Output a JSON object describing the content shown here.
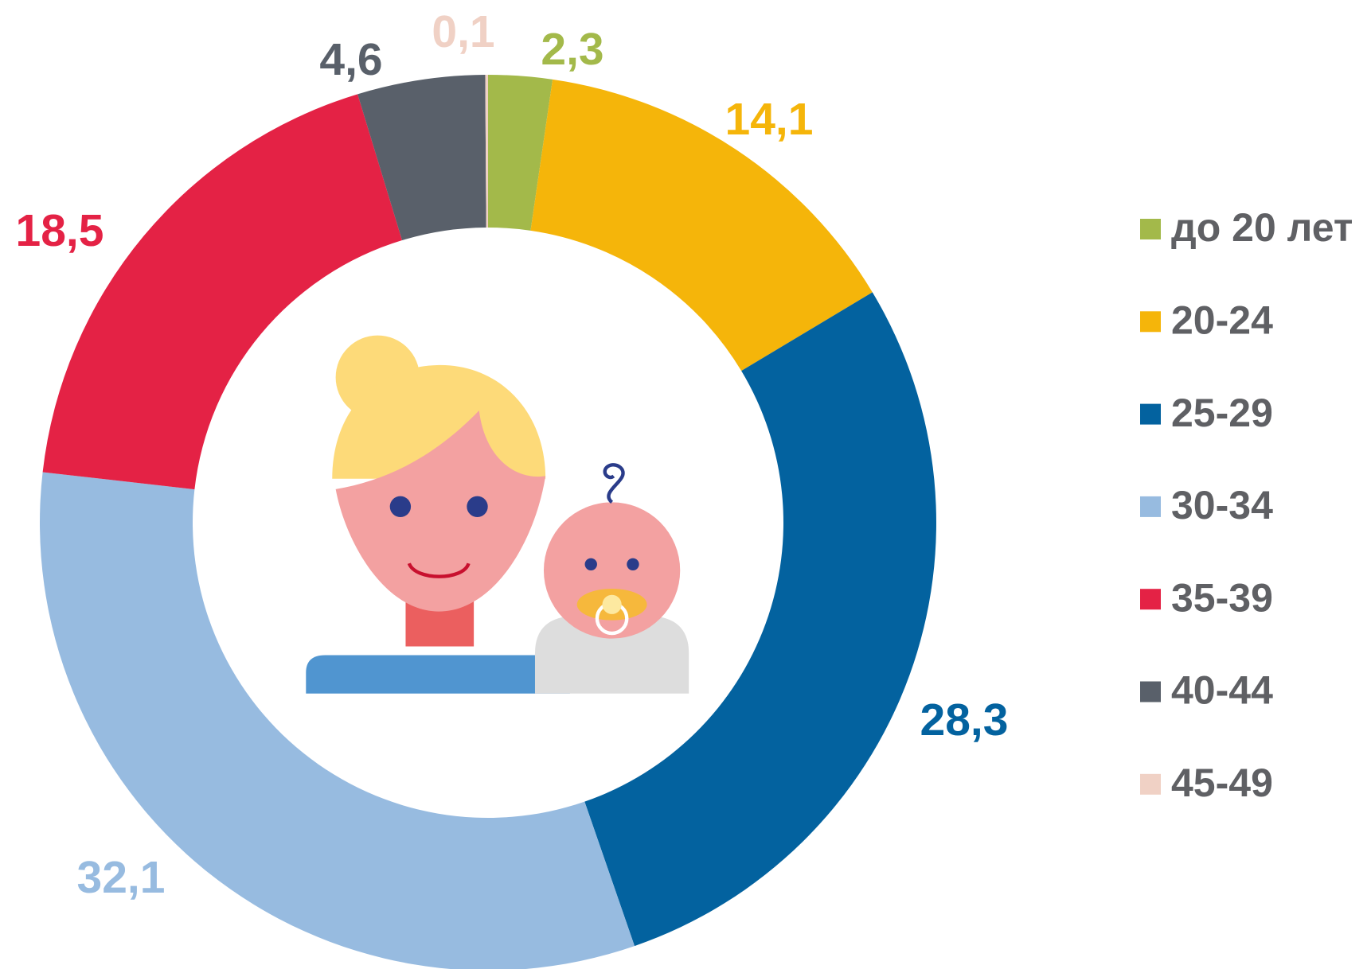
{
  "chart_data": {
    "type": "donut",
    "categories": [
      "до 20 лет",
      "20-24",
      "25-29",
      "30-34",
      "35-39",
      "40-44",
      "45-49"
    ],
    "values": [
      2.3,
      14.1,
      28.3,
      32.1,
      18.5,
      4.6,
      0.1
    ],
    "value_labels": [
      "2,3",
      "14,1",
      "28,3",
      "32,1",
      "18,5",
      "4,6",
      "0,1"
    ],
    "colors": [
      "#a3b94a",
      "#f5b50a",
      "#03629f",
      "#97bbe0",
      "#e42245",
      "#59606a",
      "#f0d1c5"
    ],
    "legend": "right"
  }
}
